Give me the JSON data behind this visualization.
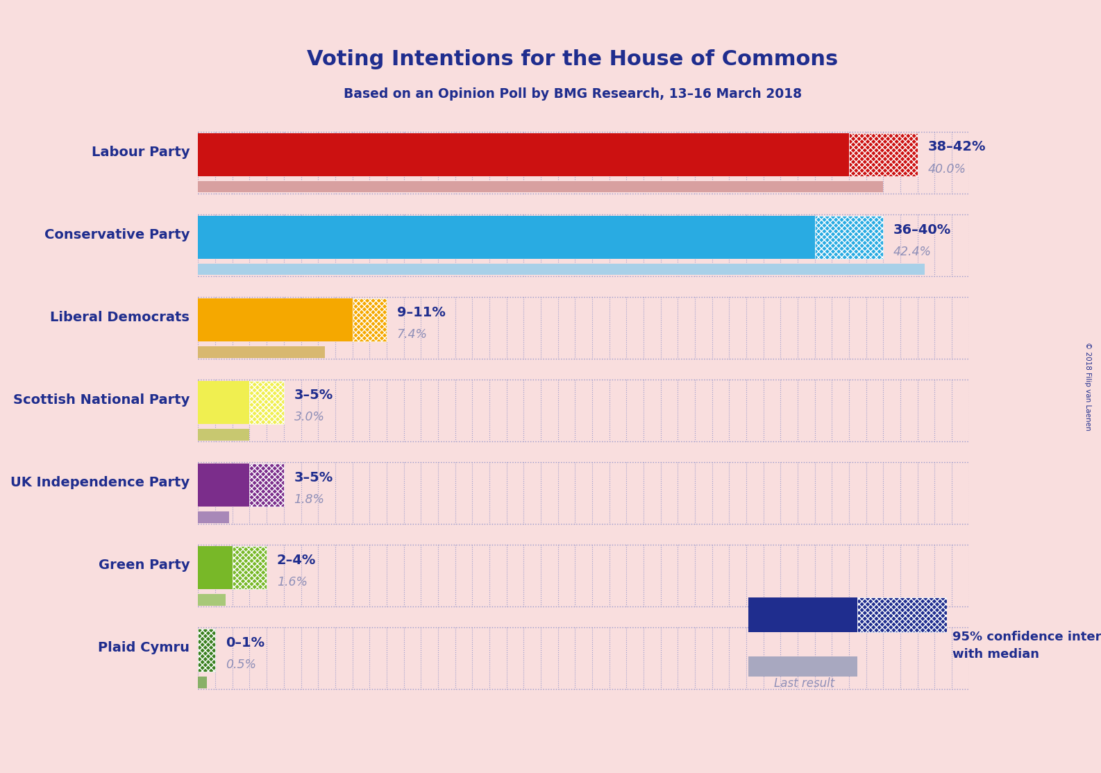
{
  "title": "Voting Intentions for the House of Commons",
  "subtitle": "Based on an Opinion Poll by BMG Research, 13–16 March 2018",
  "copyright": "© 2018 Filip van Laenen",
  "background_color": "#f9dede",
  "parties": [
    {
      "name": "Labour Party",
      "ci_low": 38,
      "ci_high": 42,
      "last_result": 40.0,
      "color": "#cc1111",
      "last_color": "#d8a0a0",
      "label": "38–42%",
      "label2": "40.0%"
    },
    {
      "name": "Conservative Party",
      "ci_low": 36,
      "ci_high": 40,
      "last_result": 42.4,
      "color": "#29abe2",
      "last_color": "#a8d0e8",
      "label": "36–40%",
      "label2": "42.4%"
    },
    {
      "name": "Liberal Democrats",
      "ci_low": 9,
      "ci_high": 11,
      "last_result": 7.4,
      "color": "#f5a800",
      "last_color": "#d8b870",
      "label": "9–11%",
      "label2": "7.4%"
    },
    {
      "name": "Scottish National Party",
      "ci_low": 3,
      "ci_high": 5,
      "last_result": 3.0,
      "color": "#f0ef50",
      "last_color": "#c8c870",
      "label": "3–5%",
      "label2": "3.0%"
    },
    {
      "name": "UK Independence Party",
      "ci_low": 3,
      "ci_high": 5,
      "last_result": 1.8,
      "color": "#7b2d8b",
      "last_color": "#a888b8",
      "label": "3–5%",
      "label2": "1.8%"
    },
    {
      "name": "Green Party",
      "ci_low": 2,
      "ci_high": 4,
      "last_result": 1.6,
      "color": "#78b828",
      "last_color": "#a8c878",
      "label": "2–4%",
      "label2": "1.6%"
    },
    {
      "name": "Plaid Cymru",
      "ci_low": 0,
      "ci_high": 1,
      "last_result": 0.5,
      "color": "#3a8020",
      "last_color": "#88b068",
      "label": "0–1%",
      "label2": "0.5%"
    }
  ],
  "xlim_max": 45,
  "name_color": "#1f2d8e",
  "label_color": "#1f2d8e",
  "label2_color": "#9090b8",
  "dotted_color": "#9999cc",
  "legend_navy": "#1f2d8e",
  "legend_gray": "#9090b8",
  "legend_last_bar_color": "#a8a8c0"
}
